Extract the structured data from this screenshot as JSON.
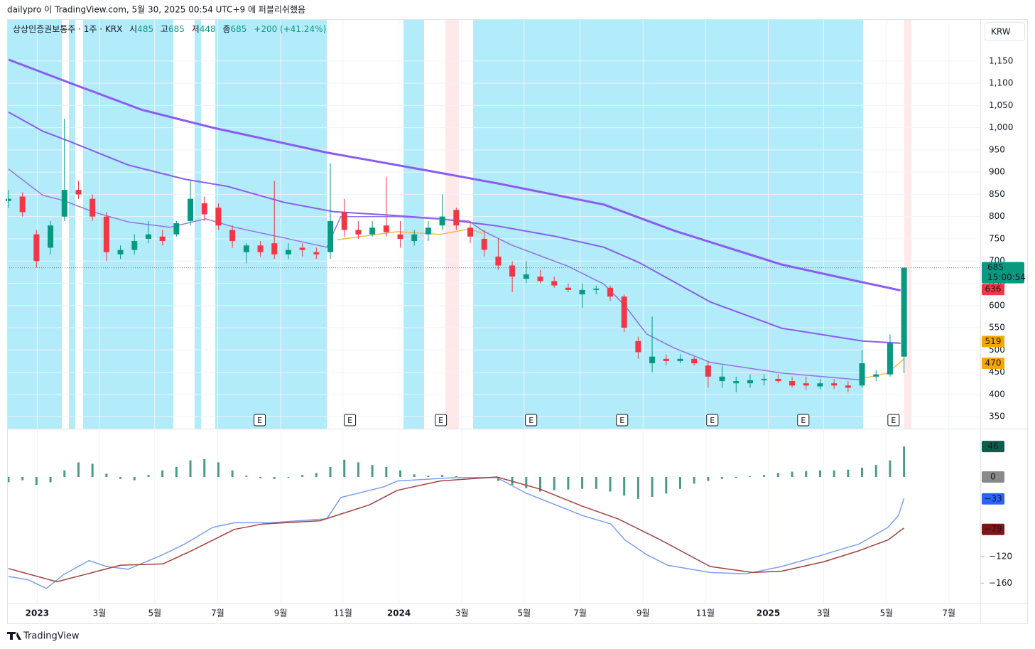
{
  "publish_note": "dailypro 이 TradingView.com, 5월 30, 2025 00:54 UTC+9 에 퍼블리쉬했음",
  "currency": "KRW",
  "brand": "TradingView",
  "chart_data": [
    {
      "type": "candlestick",
      "legend": {
        "symbol": "상상인증권보통주 · 1주 · KRX",
        "open_label": "시",
        "open": 485,
        "high_label": "고",
        "high": 685,
        "low_label": "저",
        "low": 448,
        "close_label": "종",
        "close": 685,
        "change": "+200 (+41.24%)"
      },
      "up_color": "#089981",
      "down_color": "#f23645",
      "grid": true,
      "xlim": [
        -0.2,
        138.9
      ],
      "ylim": [
        323,
        1244
      ],
      "yticks": [
        350,
        400,
        450,
        500,
        550,
        600,
        650,
        700,
        750,
        800,
        850,
        900,
        950,
        {
          "value": 1000,
          "label": "1,000"
        },
        {
          "value": 1050,
          "label": "1,050"
        },
        {
          "value": 1100,
          "label": "1,100"
        },
        {
          "value": 1150,
          "label": "1,150"
        }
      ],
      "xticks": [
        {
          "value": 4.1,
          "label": "2023"
        },
        {
          "value": 13,
          "label": "3월"
        },
        {
          "value": 20.9,
          "label": "5월"
        },
        {
          "value": 29.9,
          "label": "7월"
        },
        {
          "value": 38.9,
          "label": "9월"
        },
        {
          "value": 47.8,
          "label": "11월"
        },
        {
          "value": 55.8,
          "label": "2024"
        },
        {
          "value": 64.8,
          "label": "3월"
        },
        {
          "value": 73.7,
          "label": "5월"
        },
        {
          "value": 81.7,
          "label": "7월"
        },
        {
          "value": 90.7,
          "label": "9월"
        },
        {
          "value": 99.6,
          "label": "11월"
        },
        {
          "value": 108.6,
          "label": "2025"
        },
        {
          "value": 116.5,
          "label": "3월"
        },
        {
          "value": 125.5,
          "label": "5월"
        },
        {
          "value": 134.4,
          "label": "7월"
        }
      ],
      "x": [
        0,
        2,
        4,
        6,
        8,
        10,
        12,
        14,
        16,
        18,
        20,
        22,
        24,
        26,
        28,
        30,
        32,
        34,
        36,
        38,
        40,
        42,
        44,
        46,
        48,
        50,
        52,
        54,
        56,
        58,
        60,
        62,
        64,
        66,
        68,
        70,
        72,
        74,
        76,
        78,
        80,
        82,
        84,
        86,
        88,
        90,
        92,
        94,
        96,
        98,
        100,
        102,
        104,
        106,
        108,
        110,
        112,
        114,
        116,
        118,
        120,
        122,
        124,
        126,
        128
      ],
      "candles": [
        [
          835,
          860,
          820,
          840
        ],
        [
          845,
          855,
          800,
          810
        ],
        [
          760,
          770,
          685,
          700
        ],
        [
          730,
          790,
          715,
          780
        ],
        [
          800,
          1020,
          790,
          860
        ],
        [
          860,
          880,
          840,
          850
        ],
        [
          840,
          850,
          790,
          800
        ],
        [
          800,
          810,
          700,
          720
        ],
        [
          715,
          735,
          705,
          725
        ],
        [
          725,
          760,
          715,
          745
        ],
        [
          750,
          790,
          740,
          760
        ],
        [
          755,
          770,
          735,
          745
        ],
        [
          760,
          790,
          755,
          785
        ],
        [
          790,
          880,
          780,
          840
        ],
        [
          830,
          845,
          790,
          805
        ],
        [
          820,
          830,
          770,
          780
        ],
        [
          770,
          780,
          730,
          745
        ],
        [
          720,
          740,
          695,
          735
        ],
        [
          735,
          745,
          710,
          720
        ],
        [
          740,
          880,
          705,
          715
        ],
        [
          715,
          740,
          705,
          725
        ],
        [
          730,
          740,
          710,
          725
        ],
        [
          720,
          730,
          705,
          715
        ],
        [
          720,
          920,
          705,
          790
        ],
        [
          810,
          840,
          755,
          770
        ],
        [
          770,
          790,
          750,
          760
        ],
        [
          760,
          790,
          755,
          775
        ],
        [
          780,
          890,
          755,
          765
        ],
        [
          760,
          790,
          730,
          750
        ],
        [
          745,
          770,
          735,
          760
        ],
        [
          760,
          790,
          745,
          775
        ],
        [
          780,
          850,
          770,
          800
        ],
        [
          815,
          820,
          770,
          780
        ],
        [
          775,
          790,
          740,
          755
        ],
        [
          750,
          770,
          710,
          725
        ],
        [
          710,
          750,
          680,
          690
        ],
        [
          690,
          700,
          630,
          665
        ],
        [
          660,
          700,
          650,
          670
        ],
        [
          665,
          680,
          650,
          655
        ],
        [
          655,
          665,
          640,
          645
        ],
        [
          640,
          650,
          630,
          635
        ],
        [
          625,
          650,
          595,
          635
        ],
        [
          635,
          645,
          625,
          638
        ],
        [
          640,
          645,
          610,
          620
        ],
        [
          620,
          625,
          540,
          550
        ],
        [
          520,
          530,
          480,
          495
        ],
        [
          470,
          575,
          450,
          485
        ],
        [
          480,
          490,
          465,
          475
        ],
        [
          475,
          490,
          470,
          480
        ],
        [
          480,
          485,
          465,
          470
        ],
        [
          465,
          475,
          415,
          440
        ],
        [
          430,
          465,
          415,
          440
        ],
        [
          425,
          440,
          405,
          430
        ],
        [
          425,
          445,
          415,
          432
        ],
        [
          432,
          445,
          420,
          435
        ],
        [
          435,
          445,
          425,
          430
        ],
        [
          430,
          440,
          415,
          420
        ],
        [
          425,
          440,
          410,
          420
        ],
        [
          418,
          435,
          412,
          425
        ],
        [
          425,
          435,
          412,
          420
        ],
        [
          420,
          430,
          405,
          415
        ],
        [
          420,
          500,
          415,
          470
        ],
        [
          440,
          455,
          430,
          445
        ],
        [
          445,
          535,
          440,
          515
        ],
        [
          485,
          685,
          448,
          685
        ]
      ],
      "series": [
        {
          "color": "#8a5cf0",
          "width": 3,
          "x": [
            0,
            8.9,
            19.1,
            29.2,
            45.5,
            59.7,
            69.8,
            85.1,
            95.2,
            110.5,
            122.1,
            127.5
          ],
          "values": [
            1153,
            1100,
            1040,
            1000,
            944,
            904,
            875,
            827,
            768,
            692,
            652,
            634
          ]
        },
        {
          "color": "#8a5cf0",
          "width": 2,
          "x": [
            0,
            4.9,
            8.9,
            17.1,
            25.2,
            31.3,
            39.4,
            46.5,
            54.6,
            61.7,
            69.8,
            78,
            85.1,
            90.2,
            100.3,
            110.5,
            122.1,
            127.5
          ],
          "values": [
            1035,
            992,
            968,
            916,
            884,
            868,
            832,
            811,
            803,
            795,
            779,
            756,
            731,
            696,
            608,
            549,
            520,
            515
          ]
        },
        {
          "color": "#9272ea",
          "width": 1.5,
          "x": [
            0,
            4.9,
            7.9,
            12,
            17.1,
            23.1,
            28.2,
            32.3,
            39.4,
            45.5,
            47.5,
            55.6,
            65.8,
            67.8,
            71.9,
            80,
            85.1,
            88.1,
            91.2,
            95.2,
            100.3,
            110.5,
            122.1
          ],
          "values": [
            907,
            848,
            836,
            811,
            788,
            776,
            795,
            776,
            752,
            731,
            800,
            800,
            790,
            768,
            736,
            688,
            648,
            600,
            536,
            504,
            472,
            448,
            432
          ]
        },
        {
          "color": "#f5b94a",
          "width": 1.5,
          "x": [
            47,
            55.6,
            61.7,
            65.8,
            67.8,
            100,
            122.1,
            125.7,
            128
          ],
          "values": [
            748,
            766,
            760,
            772,
            762,
            null,
            436,
            448,
            480
          ]
        }
      ],
      "price_labels": [
        {
          "value": 685,
          "label": "685",
          "sub": "15:00:54",
          "color": "#089981",
          "text_color": "#ffffff"
        },
        {
          "value": 636,
          "label": "636",
          "color": "#f23645",
          "text_color": "#ffffff"
        },
        {
          "value": 519,
          "label": "519",
          "color": "#f7a600",
          "text_color": "#131722"
        },
        {
          "value": 470,
          "label": "470",
          "color": "#f7a600",
          "text_color": "#131722"
        }
      ],
      "events": {
        "label": "E",
        "x": [
          35.9,
          48.8,
          61.8,
          74.7,
          87.7,
          100.6,
          113.6,
          126.5
        ]
      }
    },
    {
      "type": "macd",
      "xlim": [
        -0.2,
        138.9
      ],
      "ylim": [
        -189.7,
        71.8
      ],
      "yticks": [
        {
          "value": -120,
          "label": "−120"
        },
        {
          "value": -160,
          "label": "−160"
        }
      ],
      "hist_color": "#4b9a87",
      "x": [
        0,
        2,
        4,
        6,
        8,
        10,
        12,
        14,
        16,
        18,
        20,
        22,
        24,
        26,
        28,
        30,
        32,
        34,
        36,
        38,
        40,
        42,
        44,
        46,
        48,
        50,
        52,
        54,
        56,
        58,
        60,
        62,
        64,
        66,
        68,
        70,
        72,
        74,
        76,
        78,
        80,
        82,
        84,
        86,
        88,
        90,
        92,
        94,
        96,
        98,
        100,
        102,
        104,
        106,
        108,
        110,
        112,
        114,
        116,
        118,
        120,
        122,
        124,
        126,
        128
      ],
      "histogram": [
        -8,
        -5,
        -12,
        -8,
        10,
        22,
        20,
        5,
        -3,
        -5,
        3,
        10,
        15,
        25,
        27,
        22,
        10,
        2,
        -2,
        -3,
        -1,
        3,
        6,
        15,
        26,
        22,
        18,
        15,
        10,
        4,
        2,
        3,
        1,
        0,
        -1,
        -6,
        -12,
        -17,
        -22,
        -20,
        -19,
        -18,
        -18,
        -22,
        -28,
        -33,
        -30,
        -25,
        -18,
        -10,
        -6,
        -3,
        -1,
        1,
        3,
        6,
        8,
        9,
        10,
        10,
        11,
        14,
        18,
        25,
        46
      ],
      "series": [
        {
          "color": "#7b9ef0",
          "x": [
            0,
            2.8,
            5.4,
            7.9,
            11.5,
            14,
            17.1,
            22.1,
            25.2,
            29.2,
            32.3,
            37.4,
            45.5,
            47.5,
            53.6,
            55.6,
            63.8,
            69.8,
            73.9,
            82,
            86.1,
            88.1,
            91.2,
            94.2,
            100.3,
            105.4,
            110.5,
            116.5,
            121.6,
            125.7,
            127.2,
            128
          ],
          "values": [
            -150,
            -155,
            -168,
            -147,
            -126,
            -135,
            -139,
            -117,
            -101,
            -76,
            -69,
            -69,
            -63,
            -31,
            -15,
            -6,
            -1,
            -1,
            -24,
            -58,
            -71,
            -95,
            -117,
            -133,
            -144,
            -146,
            -135,
            -117,
            -101,
            -76,
            -58,
            -32
          ]
        },
        {
          "color": "#a3403d",
          "x": [
            0,
            6.9,
            12,
            16,
            22.1,
            26.2,
            32.3,
            36.3,
            44.5,
            51.6,
            55.6,
            61.7,
            69.8,
            75.9,
            82,
            87.1,
            93.2,
            100.3,
            106.4,
            110.5,
            116.5,
            121.6,
            125.7,
            128
          ],
          "values": [
            -138,
            -158,
            -144,
            -133,
            -131,
            -111,
            -79,
            -71,
            -66,
            -42,
            -20,
            -6,
            0,
            -18,
            -44,
            -63,
            -95,
            -135,
            -144,
            -142,
            -128,
            -111,
            -95,
            -77
          ]
        }
      ],
      "value_labels": [
        {
          "value": 46,
          "label": "46",
          "color": "#0d5d4c"
        },
        {
          "value": 0,
          "label": "0",
          "color": "#8a8a8a"
        },
        {
          "value": -33,
          "label": "−33",
          "color": "#2962ff"
        },
        {
          "value": -79,
          "label": "−79",
          "color": "#801515"
        }
      ]
    }
  ]
}
